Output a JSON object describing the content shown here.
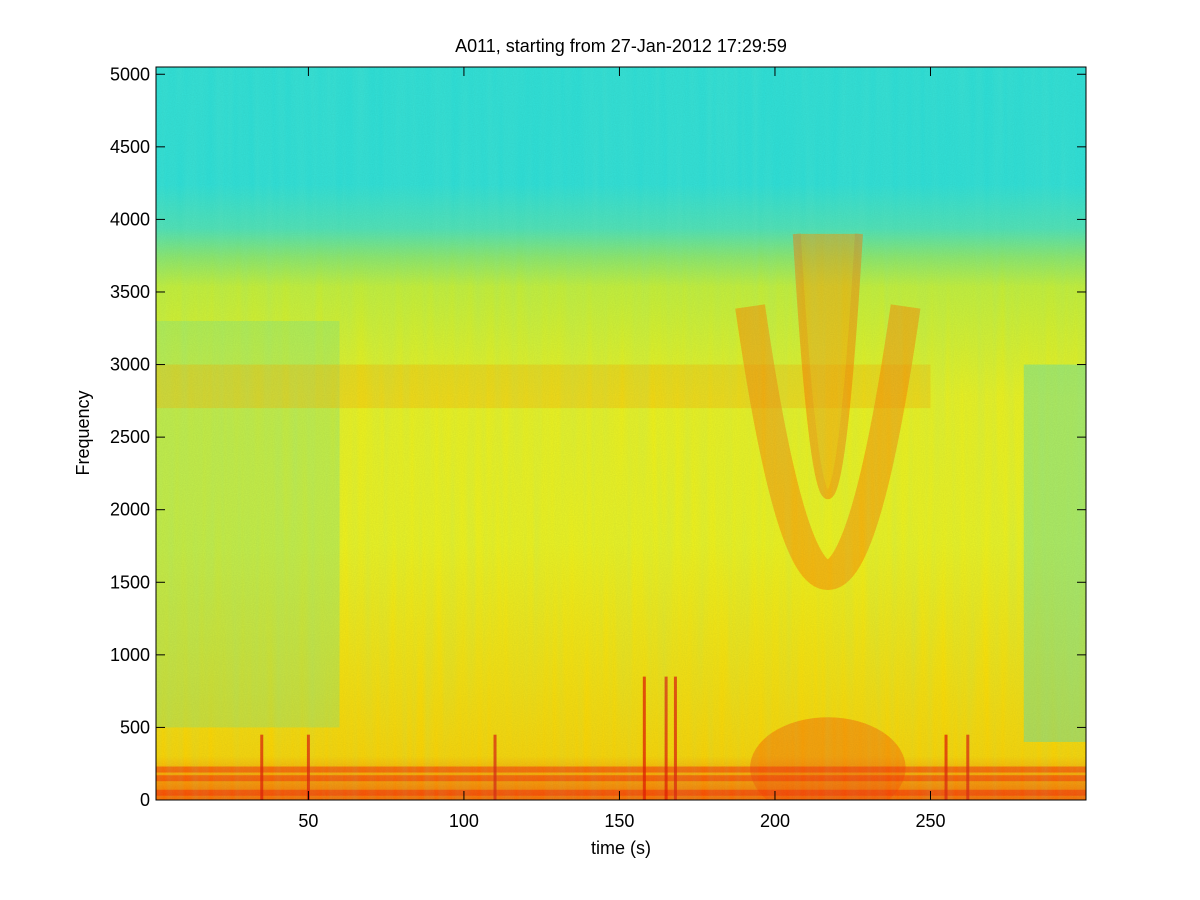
{
  "chart_data": {
    "type": "heatmap",
    "title": "A011, starting from 27-Jan-2012 17:29:59",
    "xlabel": "time (s)",
    "ylabel": "Frequency",
    "xlim": [
      1,
      300
    ],
    "ylim": [
      0,
      5050
    ],
    "xticks": [
      50,
      100,
      150,
      200,
      250
    ],
    "yticks": [
      0,
      500,
      1000,
      1500,
      2000,
      2500,
      3000,
      3500,
      4000,
      4500,
      5000
    ],
    "colormap": "jet",
    "background_color": "#2ee0d8",
    "features": [
      {
        "kind": "noise-floor",
        "description_values": {
          "freq_min": 3750,
          "freq_max": 5050
        }
      },
      {
        "kind": "broadband-band",
        "freq_min": 0,
        "freq_max": 3750
      },
      {
        "kind": "harmonic-band",
        "freq_center": 2850,
        "time_range": [
          1,
          250
        ]
      },
      {
        "kind": "v-shaped-event",
        "time_center": 217,
        "freq_min": 600,
        "freq_max": 3900
      },
      {
        "kind": "low-frequency-lines",
        "freqs": [
          50,
          150,
          210
        ]
      },
      {
        "kind": "transients",
        "times": [
          35,
          50,
          110,
          158,
          165,
          168,
          255,
          262
        ]
      }
    ]
  }
}
